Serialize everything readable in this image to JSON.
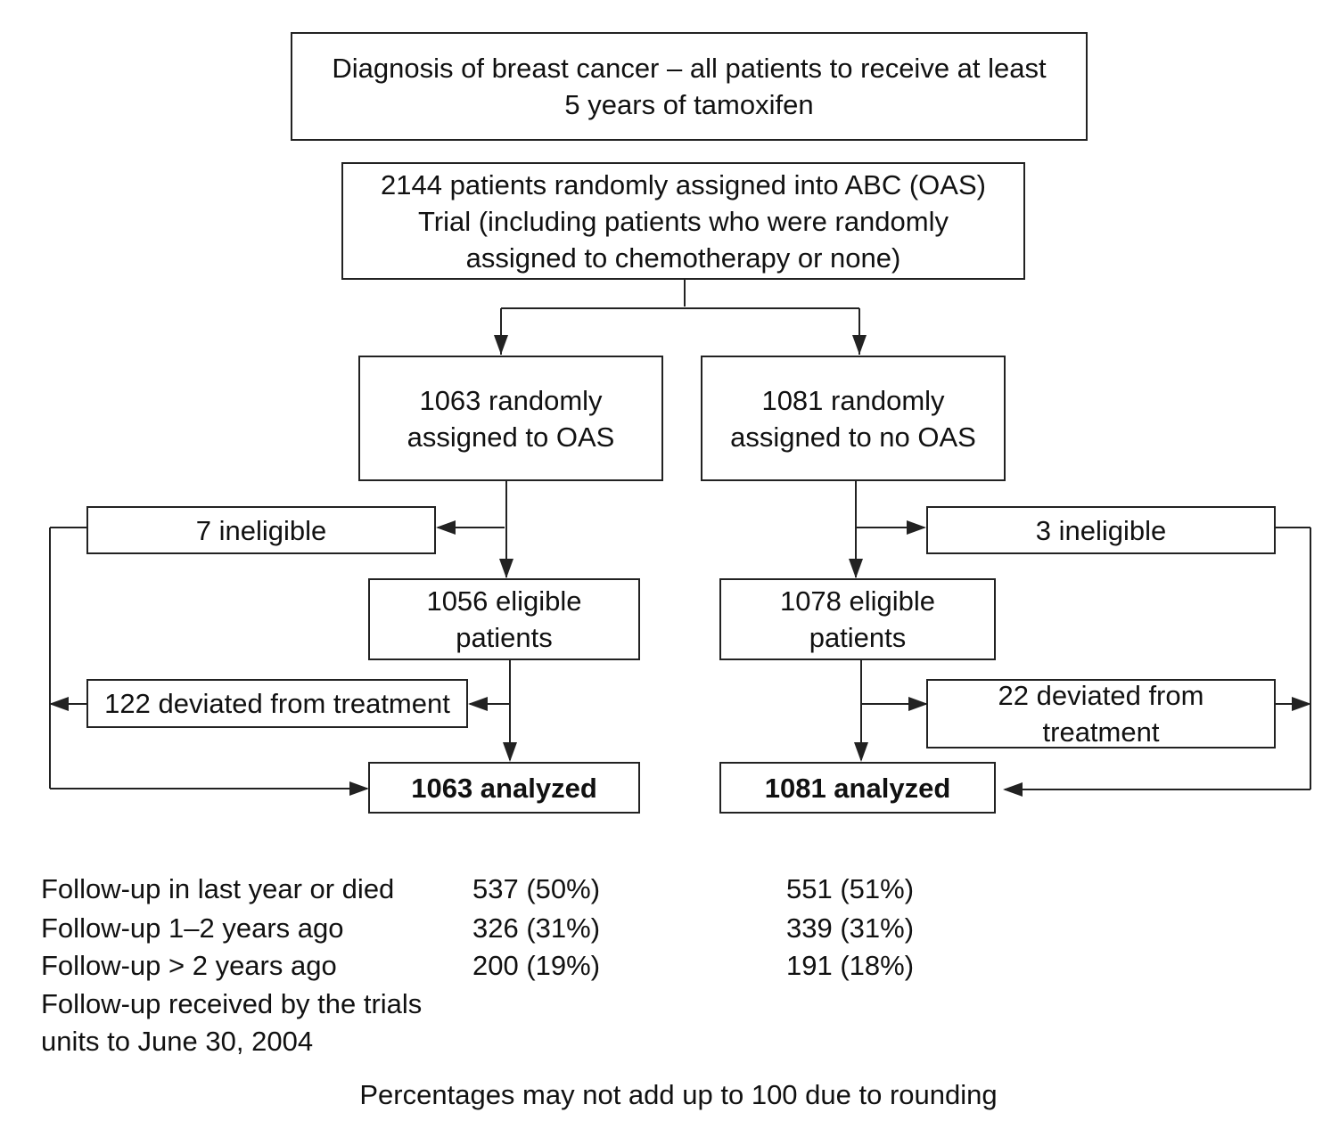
{
  "flowchart": {
    "top": [
      "Diagnosis of breast cancer – all patients to receive at least",
      "5 years of tamoxifen"
    ],
    "randomized": [
      "2144 patients randomly assigned into ABC (OAS)",
      "Trial (including patients who were randomly",
      "assigned to chemotherapy or none)"
    ],
    "left": {
      "assigned": [
        "1063 randomly",
        "assigned to OAS"
      ],
      "ineligible": "7 ineligible",
      "eligible": [
        "1056 eligible",
        "patients"
      ],
      "deviated": "122 deviated from treatment",
      "analyzed": "1063 analyzed"
    },
    "right": {
      "assigned": [
        "1081 randomly",
        "assigned to no OAS"
      ],
      "ineligible": "3 ineligible",
      "eligible": [
        "1078 eligible",
        "patients"
      ],
      "deviated": [
        "22 deviated from",
        "treatment"
      ],
      "analyzed": "1081 analyzed"
    }
  },
  "followup": {
    "rows": [
      {
        "label": "Follow-up in last year or died",
        "oas": "537 (50%)",
        "no_oas": "551 (51%)"
      },
      {
        "label": "Follow-up 1–2 years ago",
        "oas": "326 (31%)",
        "no_oas": "339 (31%)"
      },
      {
        "label": "Follow-up > 2 years ago",
        "oas": "200 (19%)",
        "no_oas": "191 (18%)"
      }
    ],
    "note": [
      "Follow-up received by the trials",
      "units to June 30, 2004"
    ]
  },
  "footnote": "Percentages may not add up to 100 due to rounding"
}
